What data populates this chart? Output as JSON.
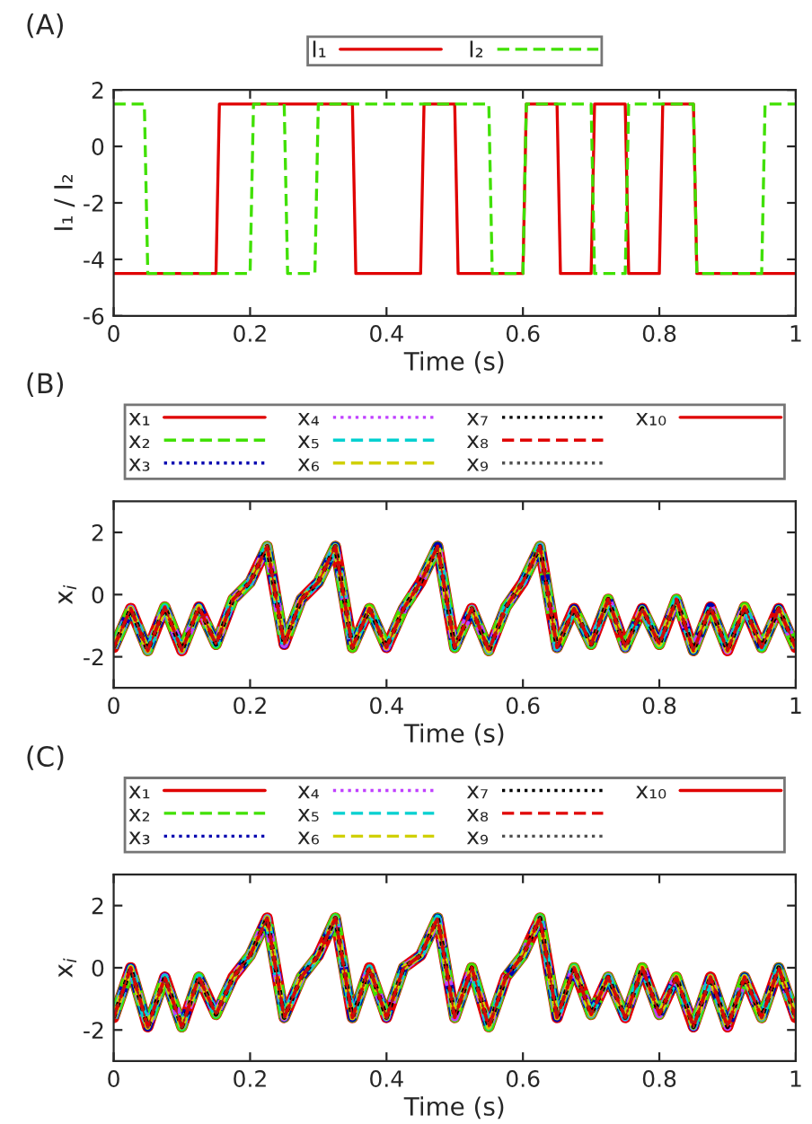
{
  "chart_data": [
    {
      "type": "line",
      "title": "(A)",
      "xlabel": "Time (s)",
      "ylabel": "I₁ / I₂",
      "xlim": [
        0,
        1
      ],
      "ylim": [
        -6,
        2
      ],
      "xticks": [
        0,
        0.2,
        0.4,
        0.6,
        0.8,
        1
      ],
      "yticks": [
        -6,
        -4,
        -2,
        0,
        2
      ],
      "grid": false,
      "legend": "top",
      "series": [
        {
          "name": "I₁",
          "color": "#e00000",
          "line_style": "solid",
          "x": [
            0,
            0.15,
            0.155,
            0.35,
            0.355,
            0.45,
            0.455,
            0.5,
            0.505,
            0.6,
            0.605,
            0.65,
            0.655,
            0.7,
            0.705,
            0.75,
            0.755,
            0.8,
            0.805,
            0.85,
            0.855,
            1
          ],
          "values": [
            -4.5,
            -4.5,
            1.5,
            1.5,
            -4.5,
            -4.5,
            1.5,
            1.5,
            -4.5,
            -4.5,
            1.5,
            1.5,
            -4.5,
            -4.5,
            1.5,
            1.5,
            -4.5,
            -4.5,
            1.5,
            1.5,
            -4.5,
            -4.5
          ]
        },
        {
          "name": "I₂",
          "color": "#40e000",
          "line_style": "dashed",
          "x": [
            0,
            0.045,
            0.05,
            0.2,
            0.205,
            0.25,
            0.255,
            0.295,
            0.3,
            0.55,
            0.555,
            0.6,
            0.605,
            0.7,
            0.705,
            0.75,
            0.755,
            0.85,
            0.855,
            0.95,
            0.955,
            1
          ],
          "values": [
            1.5,
            1.5,
            -4.5,
            -4.5,
            1.5,
            1.5,
            -4.5,
            -4.5,
            1.5,
            1.5,
            -4.5,
            -4.5,
            1.5,
            1.5,
            -4.5,
            -4.5,
            1.5,
            1.5,
            -4.5,
            -4.5,
            1.5,
            1.5
          ]
        }
      ]
    },
    {
      "type": "line",
      "title": "(B)",
      "xlabel": "Time (s)",
      "ylabel": "x$_{i}$",
      "xlim": [
        0,
        1
      ],
      "ylim": [
        -3,
        3
      ],
      "xticks": [
        0,
        0.2,
        0.4,
        0.6,
        0.8,
        1
      ],
      "yticks": [
        -2,
        0,
        2
      ],
      "grid": false,
      "legend": "top",
      "x": [
        0,
        0.025,
        0.05,
        0.075,
        0.1,
        0.125,
        0.15,
        0.175,
        0.2,
        0.225,
        0.25,
        0.275,
        0.3,
        0.325,
        0.35,
        0.375,
        0.4,
        0.425,
        0.45,
        0.475,
        0.5,
        0.525,
        0.55,
        0.575,
        0.6,
        0.625,
        0.65,
        0.675,
        0.7,
        0.725,
        0.75,
        0.775,
        0.8,
        0.825,
        0.85,
        0.875,
        0.9,
        0.925,
        0.95,
        0.975,
        1
      ],
      "series": [
        {
          "name": "x₁",
          "color": "#e00000",
          "line_style": "solid",
          "values": [
            -1.7,
            -0.45,
            -1.8,
            -0.4,
            -1.8,
            -0.4,
            -1.6,
            -0.15,
            0.4,
            1.55,
            -1.6,
            -0.15,
            0.4,
            1.55,
            -1.7,
            -0.45,
            -1.7,
            -0.45,
            0.4,
            1.55,
            -1.7,
            -0.45,
            -1.8,
            -0.4,
            0.4,
            1.55,
            -1.7,
            -0.45,
            -1.6,
            -0.15,
            -1.7,
            -0.45,
            -1.6,
            -0.15,
            -1.8,
            -0.4,
            -1.8,
            -0.4,
            -1.7,
            -0.45,
            -1.7
          ]
        },
        {
          "name": "x₂",
          "color": "#40e000",
          "line_style": "dashed",
          "values": [
            -1.7,
            -0.45,
            -1.8,
            -0.4,
            -1.8,
            -0.4,
            -1.6,
            -0.15,
            0.4,
            1.55,
            -1.6,
            -0.15,
            0.4,
            1.55,
            -1.7,
            -0.45,
            -1.7,
            -0.45,
            0.4,
            1.55,
            -1.7,
            -0.45,
            -1.8,
            -0.4,
            0.4,
            1.55,
            -1.7,
            -0.45,
            -1.6,
            -0.15,
            -1.7,
            -0.45,
            -1.6,
            -0.15,
            -1.8,
            -0.4,
            -1.8,
            -0.4,
            -1.7,
            -0.45,
            -1.7
          ]
        },
        {
          "name": "x₃",
          "color": "#0000b0",
          "line_style": "dotted",
          "values": [
            -1.7,
            -0.45,
            -1.8,
            -0.4,
            -1.8,
            -0.4,
            -1.6,
            -0.15,
            0.4,
            1.55,
            -1.6,
            -0.15,
            0.4,
            1.55,
            -1.7,
            -0.45,
            -1.7,
            -0.45,
            0.4,
            1.55,
            -1.7,
            -0.45,
            -1.8,
            -0.4,
            0.4,
            1.55,
            -1.7,
            -0.45,
            -1.6,
            -0.15,
            -1.7,
            -0.45,
            -1.6,
            -0.15,
            -1.8,
            -0.4,
            -1.8,
            -0.4,
            -1.7,
            -0.45,
            -1.7
          ]
        },
        {
          "name": "x₄",
          "color": "#c040ff",
          "line_style": "dotted",
          "values": [
            -1.7,
            -0.45,
            -1.8,
            -0.4,
            -1.8,
            -0.4,
            -1.6,
            -0.15,
            0.4,
            1.55,
            -1.6,
            -0.15,
            0.4,
            1.55,
            -1.7,
            -0.45,
            -1.7,
            -0.45,
            0.4,
            1.55,
            -1.7,
            -0.45,
            -1.8,
            -0.4,
            0.4,
            1.55,
            -1.7,
            -0.45,
            -1.6,
            -0.15,
            -1.7,
            -0.45,
            -1.6,
            -0.15,
            -1.8,
            -0.4,
            -1.8,
            -0.4,
            -1.7,
            -0.45,
            -1.7
          ]
        },
        {
          "name": "x₅",
          "color": "#00d0d0",
          "line_style": "dashed",
          "values": [
            -1.7,
            -0.45,
            -1.8,
            -0.4,
            -1.8,
            -0.4,
            -1.6,
            -0.15,
            0.4,
            1.55,
            -1.6,
            -0.15,
            0.4,
            1.55,
            -1.7,
            -0.45,
            -1.7,
            -0.45,
            0.4,
            1.55,
            -1.7,
            -0.45,
            -1.8,
            -0.4,
            0.4,
            1.55,
            -1.7,
            -0.45,
            -1.6,
            -0.15,
            -1.7,
            -0.45,
            -1.6,
            -0.15,
            -1.8,
            -0.4,
            -1.8,
            -0.4,
            -1.7,
            -0.45,
            -1.7
          ]
        },
        {
          "name": "x₆",
          "color": "#d0d000",
          "line_style": "dashed",
          "values": [
            -1.7,
            -0.45,
            -1.8,
            -0.4,
            -1.8,
            -0.4,
            -1.6,
            -0.15,
            0.4,
            1.55,
            -1.6,
            -0.15,
            0.4,
            1.55,
            -1.7,
            -0.45,
            -1.7,
            -0.45,
            0.4,
            1.55,
            -1.7,
            -0.45,
            -1.8,
            -0.4,
            0.4,
            1.55,
            -1.7,
            -0.45,
            -1.6,
            -0.15,
            -1.7,
            -0.45,
            -1.6,
            -0.15,
            -1.8,
            -0.4,
            -1.8,
            -0.4,
            -1.7,
            -0.45,
            -1.7
          ]
        },
        {
          "name": "x₇",
          "color": "#000000",
          "line_style": "dotted",
          "values": [
            -1.7,
            -0.45,
            -1.8,
            -0.4,
            -1.8,
            -0.4,
            -1.6,
            -0.15,
            0.4,
            1.55,
            -1.6,
            -0.15,
            0.4,
            1.55,
            -1.7,
            -0.45,
            -1.7,
            -0.45,
            0.4,
            1.55,
            -1.7,
            -0.45,
            -1.8,
            -0.4,
            0.4,
            1.55,
            -1.7,
            -0.45,
            -1.6,
            -0.15,
            -1.7,
            -0.45,
            -1.6,
            -0.15,
            -1.8,
            -0.4,
            -1.8,
            -0.4,
            -1.7,
            -0.45,
            -1.7
          ]
        },
        {
          "name": "x₈",
          "color": "#e00000",
          "line_style": "dashed",
          "values": [
            -1.7,
            -0.45,
            -1.8,
            -0.4,
            -1.8,
            -0.4,
            -1.6,
            -0.15,
            0.4,
            1.55,
            -1.6,
            -0.15,
            0.4,
            1.55,
            -1.7,
            -0.45,
            -1.7,
            -0.45,
            0.4,
            1.55,
            -1.7,
            -0.45,
            -1.8,
            -0.4,
            0.4,
            1.55,
            -1.7,
            -0.45,
            -1.6,
            -0.15,
            -1.7,
            -0.45,
            -1.6,
            -0.15,
            -1.8,
            -0.4,
            -1.8,
            -0.4,
            -1.7,
            -0.45,
            -1.7
          ]
        },
        {
          "name": "x₉",
          "color": "#505050",
          "line_style": "dotted",
          "values": [
            -1.7,
            -0.45,
            -1.8,
            -0.4,
            -1.8,
            -0.4,
            -1.6,
            -0.15,
            0.4,
            1.55,
            -1.6,
            -0.15,
            0.4,
            1.55,
            -1.7,
            -0.45,
            -1.7,
            -0.45,
            0.4,
            1.55,
            -1.7,
            -0.45,
            -1.8,
            -0.4,
            0.4,
            1.55,
            -1.7,
            -0.45,
            -1.6,
            -0.15,
            -1.7,
            -0.45,
            -1.6,
            -0.15,
            -1.8,
            -0.4,
            -1.8,
            -0.4,
            -1.7,
            -0.45,
            -1.7
          ]
        },
        {
          "name": "x₁₀",
          "color": "#e00000",
          "line_style": "solid",
          "values": [
            -1.7,
            -0.45,
            -1.8,
            -0.4,
            -1.8,
            -0.4,
            -1.6,
            -0.15,
            0.4,
            1.55,
            -1.6,
            -0.15,
            0.4,
            1.55,
            -1.7,
            -0.45,
            -1.7,
            -0.45,
            0.4,
            1.55,
            -1.7,
            -0.45,
            -1.8,
            -0.4,
            0.4,
            1.55,
            -1.7,
            -0.45,
            -1.6,
            -0.15,
            -1.7,
            -0.45,
            -1.6,
            -0.15,
            -1.8,
            -0.4,
            -1.8,
            -0.4,
            -1.7,
            -0.45,
            -1.7
          ]
        }
      ]
    },
    {
      "type": "line",
      "title": "(C)",
      "xlabel": "Time (s)",
      "ylabel": "x$_{i}$",
      "xlim": [
        0,
        1
      ],
      "ylim": [
        -3,
        3
      ],
      "xticks": [
        0,
        0.2,
        0.4,
        0.6,
        0.8,
        1
      ],
      "yticks": [
        -2,
        0,
        2
      ],
      "grid": false,
      "legend": "top",
      "x": [
        0,
        0.025,
        0.05,
        0.075,
        0.1,
        0.125,
        0.15,
        0.175,
        0.2,
        0.225,
        0.25,
        0.275,
        0.3,
        0.325,
        0.35,
        0.375,
        0.4,
        0.425,
        0.45,
        0.475,
        0.5,
        0.525,
        0.55,
        0.575,
        0.6,
        0.625,
        0.65,
        0.675,
        0.7,
        0.725,
        0.75,
        0.775,
        0.8,
        0.825,
        0.85,
        0.875,
        0.9,
        0.925,
        0.95,
        0.975,
        1
      ],
      "series": [
        {
          "name": "x₁",
          "color": "#e00000",
          "line_style": "solid",
          "values": [
            -1.6,
            0,
            -1.9,
            -0.3,
            -1.9,
            -0.3,
            -1.5,
            -0.3,
            0.4,
            1.6,
            -1.6,
            -0.3,
            0.4,
            1.6,
            -1.6,
            0,
            -1.6,
            0,
            0.4,
            1.6,
            -1.6,
            0,
            -1.9,
            -0.3,
            0.4,
            1.6,
            -1.6,
            0,
            -1.5,
            -0.3,
            -1.6,
            0,
            -1.5,
            -0.3,
            -1.9,
            -0.3,
            -1.9,
            -0.3,
            -1.6,
            0,
            -1.6
          ]
        },
        {
          "name": "x₂",
          "color": "#40e000",
          "line_style": "dashed",
          "values": [
            -1.6,
            0,
            -1.9,
            -0.3,
            -1.9,
            -0.3,
            -1.5,
            -0.3,
            0.4,
            1.6,
            -1.6,
            -0.3,
            0.4,
            1.6,
            -1.6,
            0,
            -1.6,
            0,
            0.4,
            1.6,
            -1.6,
            0,
            -1.9,
            -0.3,
            0.4,
            1.6,
            -1.6,
            0,
            -1.5,
            -0.3,
            -1.6,
            0,
            -1.5,
            -0.3,
            -1.9,
            -0.3,
            -1.9,
            -0.3,
            -1.6,
            0,
            -1.6
          ]
        },
        {
          "name": "x₃",
          "color": "#0000b0",
          "line_style": "dotted",
          "values": [
            -1.6,
            0,
            -1.9,
            -0.3,
            -1.9,
            -0.3,
            -1.5,
            -0.3,
            0.4,
            1.6,
            -1.6,
            -0.3,
            0.4,
            1.6,
            -1.6,
            0,
            -1.6,
            0,
            0.4,
            1.6,
            -1.6,
            0,
            -1.9,
            -0.3,
            0.4,
            1.6,
            -1.6,
            0,
            -1.5,
            -0.3,
            -1.6,
            0,
            -1.5,
            -0.3,
            -1.9,
            -0.3,
            -1.9,
            -0.3,
            -1.6,
            0,
            -1.6
          ]
        },
        {
          "name": "x₄",
          "color": "#c040ff",
          "line_style": "dotted",
          "values": [
            -1.6,
            0,
            -1.9,
            -0.3,
            -1.9,
            -0.3,
            -1.5,
            -0.3,
            0.4,
            1.6,
            -1.6,
            -0.3,
            0.4,
            1.6,
            -1.6,
            0,
            -1.6,
            0,
            0.4,
            1.6,
            -1.6,
            0,
            -1.9,
            -0.3,
            0.4,
            1.6,
            -1.6,
            0,
            -1.5,
            -0.3,
            -1.6,
            0,
            -1.5,
            -0.3,
            -1.9,
            -0.3,
            -1.9,
            -0.3,
            -1.6,
            0,
            -1.6
          ]
        },
        {
          "name": "x₅",
          "color": "#00d0d0",
          "line_style": "dashed",
          "values": [
            -1.6,
            0,
            -1.9,
            -0.3,
            -1.9,
            -0.3,
            -1.5,
            -0.3,
            0.4,
            1.6,
            -1.6,
            -0.3,
            0.4,
            1.6,
            -1.6,
            0,
            -1.6,
            0,
            0.4,
            1.6,
            -1.6,
            0,
            -1.9,
            -0.3,
            0.4,
            1.6,
            -1.6,
            0,
            -1.5,
            -0.3,
            -1.6,
            0,
            -1.5,
            -0.3,
            -1.9,
            -0.3,
            -1.9,
            -0.3,
            -1.6,
            0,
            -1.6
          ]
        },
        {
          "name": "x₆",
          "color": "#d0d000",
          "line_style": "dashed",
          "values": [
            -1.6,
            0,
            -1.9,
            -0.3,
            -1.9,
            -0.3,
            -1.5,
            -0.3,
            0.4,
            1.6,
            -1.6,
            -0.3,
            0.4,
            1.6,
            -1.6,
            0,
            -1.6,
            0,
            0.4,
            1.6,
            -1.6,
            0,
            -1.9,
            -0.3,
            0.4,
            1.6,
            -1.6,
            0,
            -1.5,
            -0.3,
            -1.6,
            0,
            -1.5,
            -0.3,
            -1.9,
            -0.3,
            -1.9,
            -0.3,
            -1.6,
            0,
            -1.6
          ]
        },
        {
          "name": "x₇",
          "color": "#000000",
          "line_style": "dotted",
          "values": [
            -1.6,
            0,
            -1.9,
            -0.3,
            -1.9,
            -0.3,
            -1.5,
            -0.3,
            0.4,
            1.6,
            -1.6,
            -0.3,
            0.4,
            1.6,
            -1.6,
            0,
            -1.6,
            0,
            0.4,
            1.6,
            -1.6,
            0,
            -1.9,
            -0.3,
            0.4,
            1.6,
            -1.6,
            0,
            -1.5,
            -0.3,
            -1.6,
            0,
            -1.5,
            -0.3,
            -1.9,
            -0.3,
            -1.9,
            -0.3,
            -1.6,
            0,
            -1.6
          ]
        },
        {
          "name": "x₈",
          "color": "#e00000",
          "line_style": "dashed",
          "values": [
            -1.6,
            0,
            -1.9,
            -0.3,
            -1.9,
            -0.3,
            -1.5,
            -0.3,
            0.4,
            1.6,
            -1.6,
            -0.3,
            0.4,
            1.6,
            -1.6,
            0,
            -1.6,
            0,
            0.4,
            1.6,
            -1.6,
            0,
            -1.9,
            -0.3,
            0.4,
            1.6,
            -1.6,
            0,
            -1.5,
            -0.3,
            -1.6,
            0,
            -1.5,
            -0.3,
            -1.9,
            -0.3,
            -1.9,
            -0.3,
            -1.6,
            0,
            -1.6
          ]
        },
        {
          "name": "x₉",
          "color": "#505050",
          "line_style": "dotted",
          "values": [
            -1.6,
            0,
            -1.9,
            -0.3,
            -1.9,
            -0.3,
            -1.5,
            -0.3,
            0.4,
            1.6,
            -1.6,
            -0.3,
            0.4,
            1.6,
            -1.6,
            0,
            -1.6,
            0,
            0.4,
            1.6,
            -1.6,
            0,
            -1.9,
            -0.3,
            0.4,
            1.6,
            -1.6,
            0,
            -1.5,
            -0.3,
            -1.6,
            0,
            -1.5,
            -0.3,
            -1.9,
            -0.3,
            -1.9,
            -0.3,
            -1.6,
            0,
            -1.6
          ]
        },
        {
          "name": "x₁₀",
          "color": "#e00000",
          "line_style": "solid",
          "values": [
            -1.6,
            0,
            -1.9,
            -0.3,
            -1.9,
            -0.3,
            -1.5,
            -0.3,
            0.4,
            1.6,
            -1.6,
            -0.3,
            0.4,
            1.6,
            -1.6,
            0,
            -1.6,
            0,
            0.4,
            1.6,
            -1.6,
            0,
            -1.9,
            -0.3,
            0.4,
            1.6,
            -1.6,
            0,
            -1.5,
            -0.3,
            -1.6,
            0,
            -1.5,
            -0.3,
            -1.9,
            -0.3,
            -1.9,
            -0.3,
            -1.6,
            0,
            -1.6
          ]
        }
      ]
    }
  ]
}
